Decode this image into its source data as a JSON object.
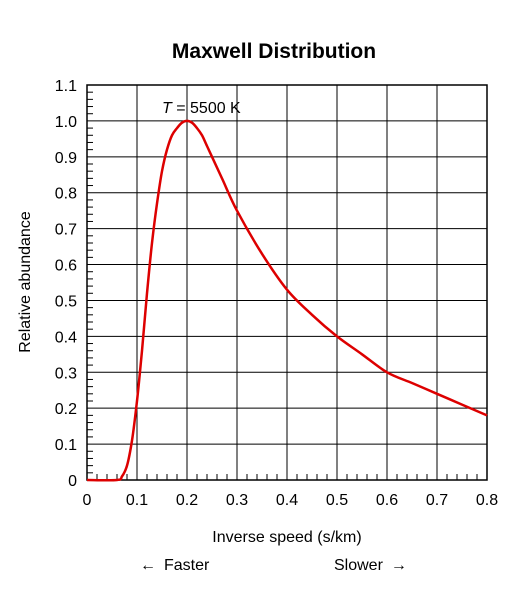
{
  "chart_data": {
    "type": "line",
    "title": "Maxwell Distribution",
    "xlabel": "Inverse speed (s/km)",
    "ylabel": "Relative abundance",
    "xlim": [
      0,
      0.8
    ],
    "ylim": [
      0,
      1.1
    ],
    "x_ticks": [
      "0",
      "0.1",
      "0.2",
      "0.3",
      "0.4",
      "0.5",
      "0.6",
      "0.7",
      "0.8"
    ],
    "y_ticks": [
      "0",
      "0.1",
      "0.2",
      "0.3",
      "0.4",
      "0.5",
      "0.6",
      "0.7",
      "0.8",
      "0.9",
      "1.0",
      "1.1"
    ],
    "grid": true,
    "annotation": {
      "variable": "T",
      "text": " = 5500 K",
      "x": 0.2,
      "y": 1.0
    },
    "direction_labels": {
      "left": "Faster",
      "right": "Slower",
      "left_arrow": "←",
      "right_arrow": "→"
    },
    "series": [
      {
        "color": "#dd0000",
        "x": [
          0.0,
          0.06,
          0.07,
          0.08,
          0.09,
          0.1,
          0.11,
          0.12,
          0.13,
          0.14,
          0.15,
          0.16,
          0.17,
          0.18,
          0.19,
          0.2,
          0.21,
          0.22,
          0.23,
          0.24,
          0.25,
          0.27,
          0.3,
          0.35,
          0.4,
          0.45,
          0.5,
          0.55,
          0.6,
          0.65,
          0.7,
          0.75,
          0.8
        ],
        "y": [
          0.0,
          0.0,
          0.01,
          0.04,
          0.11,
          0.22,
          0.36,
          0.52,
          0.66,
          0.77,
          0.86,
          0.92,
          0.96,
          0.98,
          0.995,
          1.0,
          0.995,
          0.98,
          0.96,
          0.93,
          0.9,
          0.84,
          0.75,
          0.63,
          0.53,
          0.46,
          0.4,
          0.35,
          0.3,
          0.27,
          0.24,
          0.21,
          0.18
        ]
      }
    ]
  }
}
